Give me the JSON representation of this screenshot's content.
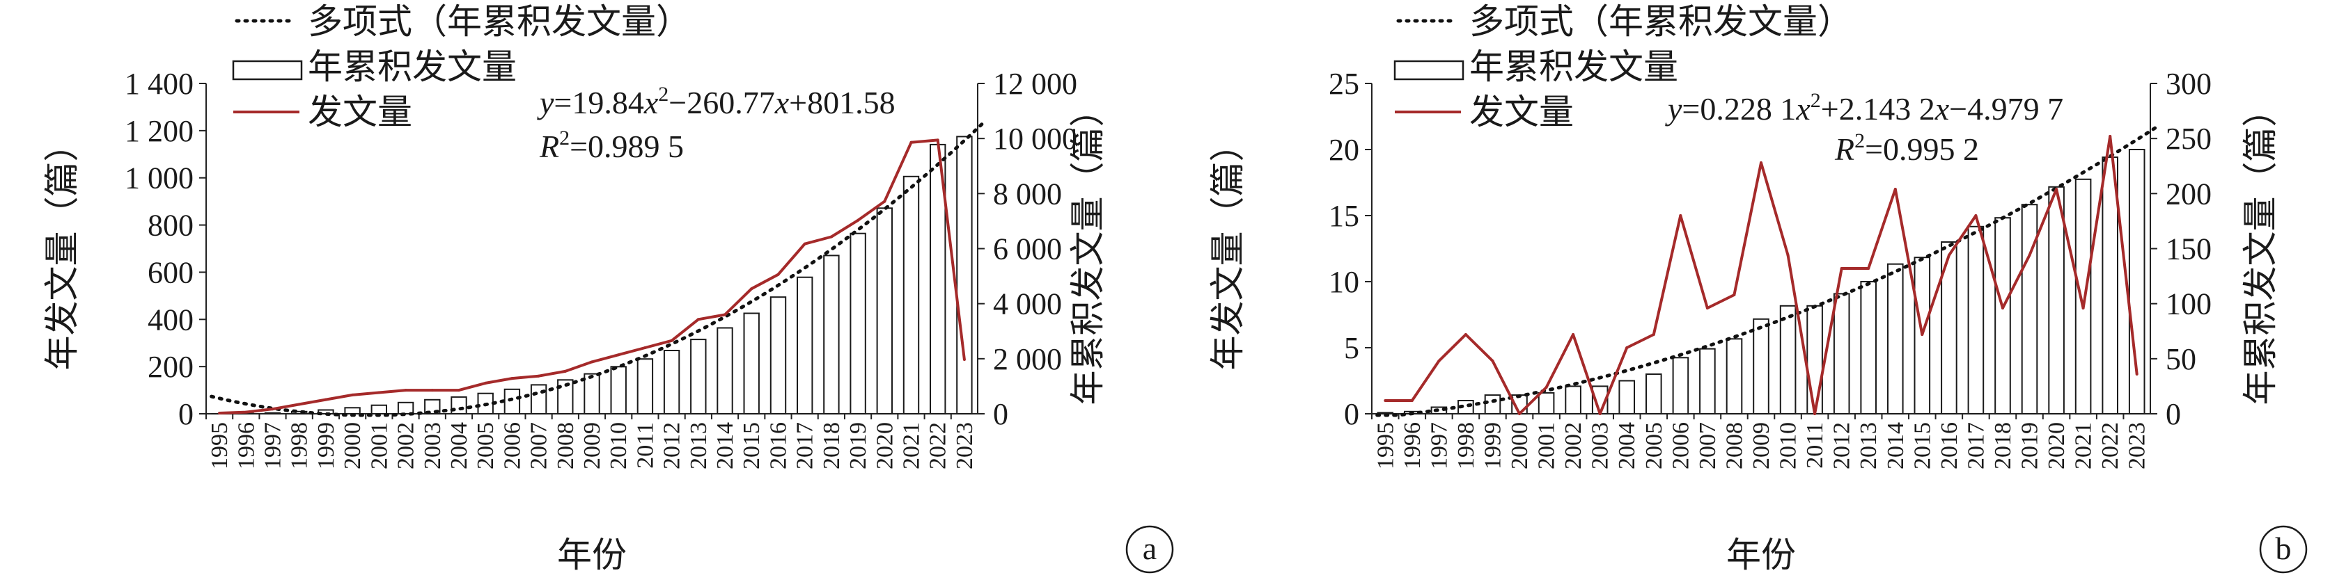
{
  "chart_data": [
    {
      "type": "bar",
      "panel": "a",
      "x": [
        "1995",
        "1996",
        "1997",
        "1998",
        "1999",
        "2000",
        "2001",
        "2002",
        "2003",
        "2004",
        "2005",
        "2006",
        "2007",
        "2008",
        "2009",
        "2010",
        "2011",
        "2012",
        "2013",
        "2014",
        "2015",
        "2016",
        "2017",
        "2018",
        "2019",
        "2020",
        "2021",
        "2022",
        "2023"
      ],
      "xlabel": "年份",
      "ylabel_left": "年发文量（篇）",
      "ylabel_right": "年累积发文量（篇）",
      "ylim_left": [
        0,
        1400
      ],
      "ylim_right": [
        0,
        12000
      ],
      "yticks_left": [
        "0",
        "200",
        "400",
        "600",
        "800",
        "1 000",
        "1 200",
        "1 400"
      ],
      "yticks_right": [
        "0",
        "2 000",
        "4 000",
        "6 000",
        "8 000",
        "10 000",
        "12 000"
      ],
      "series": [
        {
          "name": "年累积发文量",
          "kind": "bar",
          "axis": "right",
          "values": [
            3,
            10,
            30,
            80,
            140,
            220,
            310,
            410,
            510,
            610,
            740,
            890,
            1050,
            1230,
            1450,
            1710,
            1990,
            2300,
            2700,
            3120,
            3650,
            4240,
            4960,
            5750,
            6550,
            7470,
            8620,
            9780,
            10070
          ]
        },
        {
          "name": "发文量",
          "kind": "line",
          "axis": "left",
          "color": "#a52a2a",
          "values": [
            3,
            7,
            20,
            40,
            60,
            80,
            90,
            100,
            100,
            100,
            130,
            150,
            160,
            180,
            220,
            250,
            280,
            310,
            400,
            420,
            530,
            590,
            720,
            750,
            820,
            900,
            1150,
            1160,
            230
          ]
        },
        {
          "name": "多项式（年累积发文量）",
          "kind": "trend",
          "axis": "right",
          "style": "dotted"
        }
      ],
      "fit": {
        "a": 19.84,
        "b": -260.77,
        "c": 801.58
      },
      "equation": {
        "y": "y",
        "eq": "=19.84",
        "x1": "x",
        "sup": "2",
        "rest1": "−260.77",
        "x2": "x",
        "rest2": "+801.58"
      },
      "r2": {
        "r": "R",
        "sup": "2",
        "val": "=0.989 5"
      },
      "panel_label": "a"
    },
    {
      "type": "bar",
      "panel": "b",
      "x": [
        "1995",
        "1996",
        "1997",
        "1998",
        "1999",
        "2000",
        "2001",
        "2002",
        "2003",
        "2004",
        "2005",
        "2006",
        "2007",
        "2008",
        "2009",
        "2010",
        "2011",
        "2012",
        "2013",
        "2014",
        "2015",
        "2016",
        "2017",
        "2018",
        "2019",
        "2020",
        "2021",
        "2022",
        "2023"
      ],
      "xlabel": "年份",
      "ylabel_left": "年发文量（篇）",
      "ylabel_right": "年累积发文量（篇）",
      "ylim_left": [
        0,
        25
      ],
      "ylim_right": [
        0,
        300
      ],
      "yticks_left": [
        "0",
        "5",
        "10",
        "15",
        "20",
        "25"
      ],
      "yticks_right": [
        "0",
        "50",
        "100",
        "150",
        "200",
        "250",
        "300"
      ],
      "series": [
        {
          "name": "年累积发文量",
          "kind": "bar",
          "axis": "right",
          "values": [
            1,
            2,
            6,
            12,
            17,
            17,
            19,
            25,
            25,
            30,
            36,
            51,
            59,
            68,
            86,
            98,
            98,
            109,
            120,
            136,
            142,
            156,
            170,
            178,
            190,
            206,
            213,
            233,
            240
          ]
        },
        {
          "name": "发文量",
          "kind": "line",
          "axis": "left",
          "color": "#a52a2a",
          "values": [
            1,
            1,
            4,
            6,
            4,
            0,
            2,
            6,
            0,
            5,
            6,
            15,
            8,
            9,
            19,
            12,
            0,
            11,
            11,
            17,
            6,
            12,
            15,
            8,
            12,
            17,
            8,
            21,
            3
          ]
        },
        {
          "name": "多项式（年累积发文量）",
          "kind": "trend",
          "axis": "right",
          "style": "dotted"
        }
      ],
      "fit": {
        "a": 0.2281,
        "b": 2.1432,
        "c": -4.9797
      },
      "equation": {
        "y": "y",
        "eq": "=0.228 1",
        "x1": "x",
        "sup": "2",
        "rest1": "+2.143 2",
        "x2": "x",
        "rest2": "−4.979 7"
      },
      "r2": {
        "r": "R",
        "sup": "2",
        "val": "=0.995 2"
      },
      "panel_label": "b"
    }
  ]
}
